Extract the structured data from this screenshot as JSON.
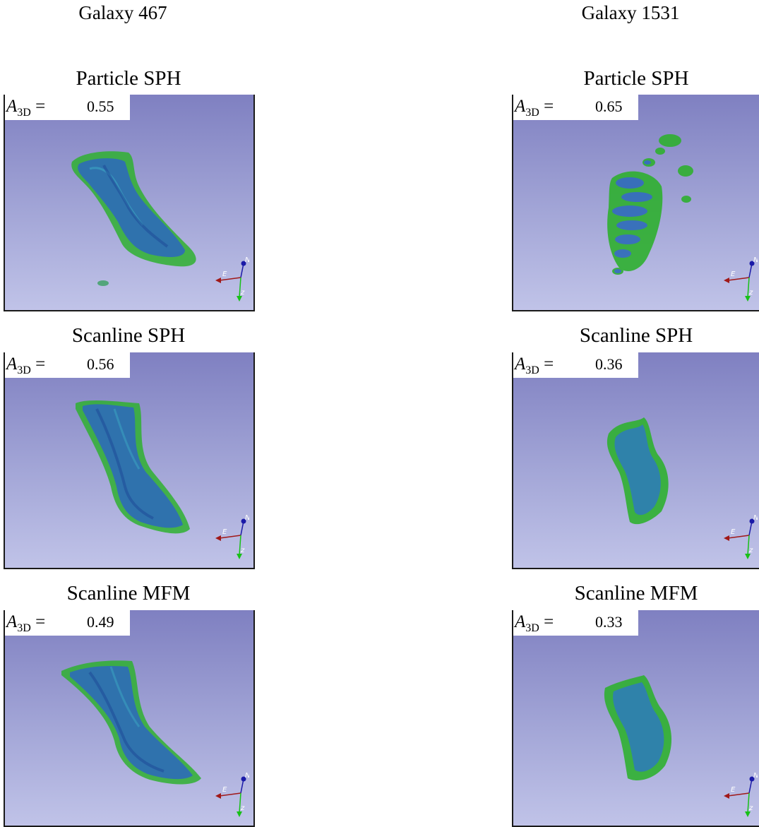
{
  "columns": [
    {
      "title": "Galaxy 467",
      "panels": [
        {
          "title": "Particle SPH",
          "a3d_label": "A",
          "a3d_sub": "3D",
          "a3d_eq": "=",
          "value": "0.55"
        },
        {
          "title": "Scanline SPH",
          "a3d_label": "A",
          "a3d_sub": "3D",
          "a3d_eq": "=",
          "value": "0.56"
        },
        {
          "title": "Scanline MFM",
          "a3d_label": "A",
          "a3d_sub": "3D",
          "a3d_eq": "=",
          "value": "0.49"
        }
      ]
    },
    {
      "title": "Galaxy 1531",
      "panels": [
        {
          "title": "Particle SPH",
          "a3d_label": "A",
          "a3d_sub": "3D",
          "a3d_eq": "=",
          "value": "0.65"
        },
        {
          "title": "Scanline SPH",
          "a3d_label": "A",
          "a3d_sub": "3D",
          "a3d_eq": "=",
          "value": "0.36"
        },
        {
          "title": "Scanline MFM",
          "a3d_label": "A",
          "a3d_sub": "3D",
          "a3d_eq": "=",
          "value": "0.33"
        }
      ]
    }
  ],
  "axes_labels": {
    "north": "N",
    "east": "E",
    "z": "z"
  },
  "colors": {
    "background_top": "#7f80c1",
    "background_bottom": "#c0c3e8",
    "surface_green": "#2fb030",
    "surface_blue": "#2e6bb8",
    "axis_north": "#1a1aa8",
    "axis_east": "#a01818",
    "axis_z": "#18c018"
  }
}
